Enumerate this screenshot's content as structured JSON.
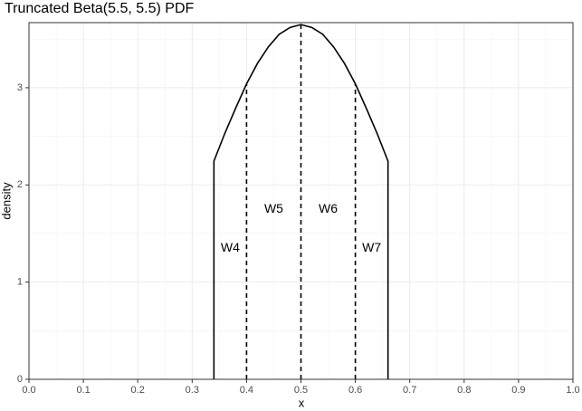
{
  "chart_data": {
    "type": "line",
    "title": "Truncated Beta(5.5, 5.5) PDF",
    "x_label": "x",
    "y_label": "density",
    "series": [
      {
        "name": "density",
        "color": "#000000",
        "x": [
          0.34,
          0.34,
          0.36,
          0.38,
          0.4,
          0.42,
          0.44,
          0.46,
          0.48,
          0.5,
          0.52,
          0.54,
          0.56,
          0.58,
          0.6,
          0.62,
          0.64,
          0.66,
          0.66
        ],
        "values": [
          0,
          2.245,
          2.53,
          2.79,
          3.04,
          3.25,
          3.42,
          3.55,
          3.62,
          3.65,
          3.62,
          3.55,
          3.42,
          3.25,
          3.04,
          2.79,
          2.53,
          2.245,
          0
        ]
      }
    ],
    "dashed_lines": {
      "color": "#000000",
      "x": [
        0.4,
        0.5,
        0.6
      ],
      "values": [
        3.04,
        3.65,
        3.04
      ]
    },
    "annotations": [
      {
        "text": "W4",
        "x": 0.37,
        "y": 1.35
      },
      {
        "text": "W5",
        "x": 0.45,
        "y": 1.75
      },
      {
        "text": "W6",
        "x": 0.55,
        "y": 1.75
      },
      {
        "text": "W7",
        "x": 0.63,
        "y": 1.35
      }
    ],
    "xlim": [
      0,
      1
    ],
    "ylim": [
      0,
      3.67
    ],
    "xticks": [
      {
        "value": 0,
        "label": "0.0"
      },
      0.1,
      0.2,
      0.3,
      0.4,
      0.5,
      0.6,
      0.7,
      0.8,
      0.9,
      {
        "value": 1,
        "label": "1.0"
      }
    ],
    "yticks": [
      0,
      1,
      2,
      3
    ],
    "grid": true
  }
}
